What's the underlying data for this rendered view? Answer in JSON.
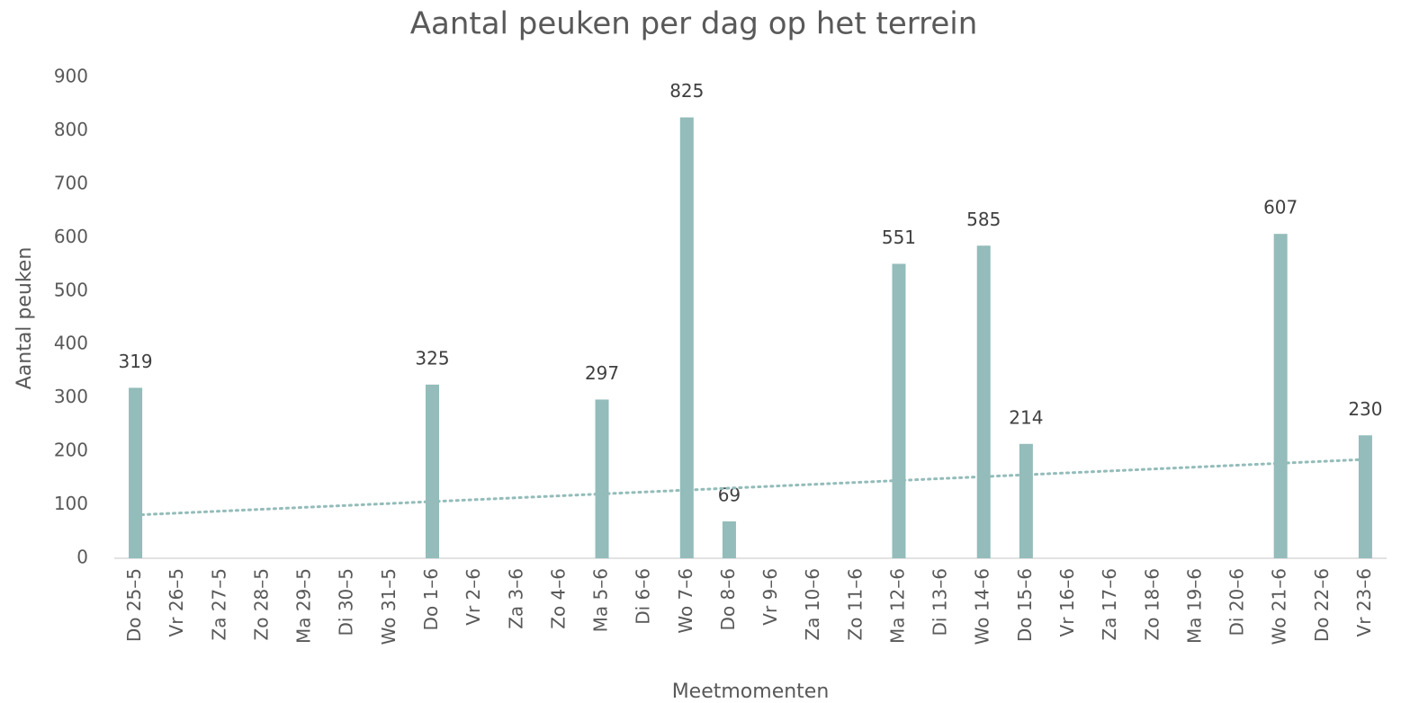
{
  "chart_data": {
    "type": "bar",
    "title": "Aantal peuken per dag op het terrein",
    "x_label": "Meetmomenten",
    "y_label": "Aantal peuken",
    "categories": [
      "Do 25–5",
      "Vr 26–5",
      "Za 27–5",
      "Zo 28–5",
      "Ma 29–5",
      "Di 30–5",
      "Wo 31–5",
      "Do 1–6",
      "Vr 2–6",
      "Za 3–6",
      "Zo 4–6",
      "Ma 5–6",
      "Di 6–6",
      "Wo 7–6",
      "Do 8–6",
      "Vr 9–6",
      "Za 10–6",
      "Zo 11–6",
      "Ma 12–6",
      "Di 13–6",
      "Wo 14–6",
      "Do 15–6",
      "Vr 16–6",
      "Za 17–6",
      "Zo 18–6",
      "Ma 19–6",
      "Di 20–6",
      "Wo 21–6",
      "Do 22–6",
      "Vr 23–6"
    ],
    "values": [
      319,
      null,
      null,
      null,
      null,
      null,
      null,
      325,
      null,
      null,
      null,
      297,
      null,
      825,
      69,
      null,
      null,
      null,
      551,
      null,
      585,
      214,
      null,
      null,
      null,
      null,
      null,
      607,
      null,
      230
    ],
    "color": "#93bcba",
    "trendline": {
      "values": [
        81,
        185
      ],
      "color": "#93bcba"
    },
    "ylim": [
      0,
      900
    ],
    "yticks": [
      0,
      100,
      200,
      300,
      400,
      500,
      600,
      700,
      800,
      900
    ]
  }
}
